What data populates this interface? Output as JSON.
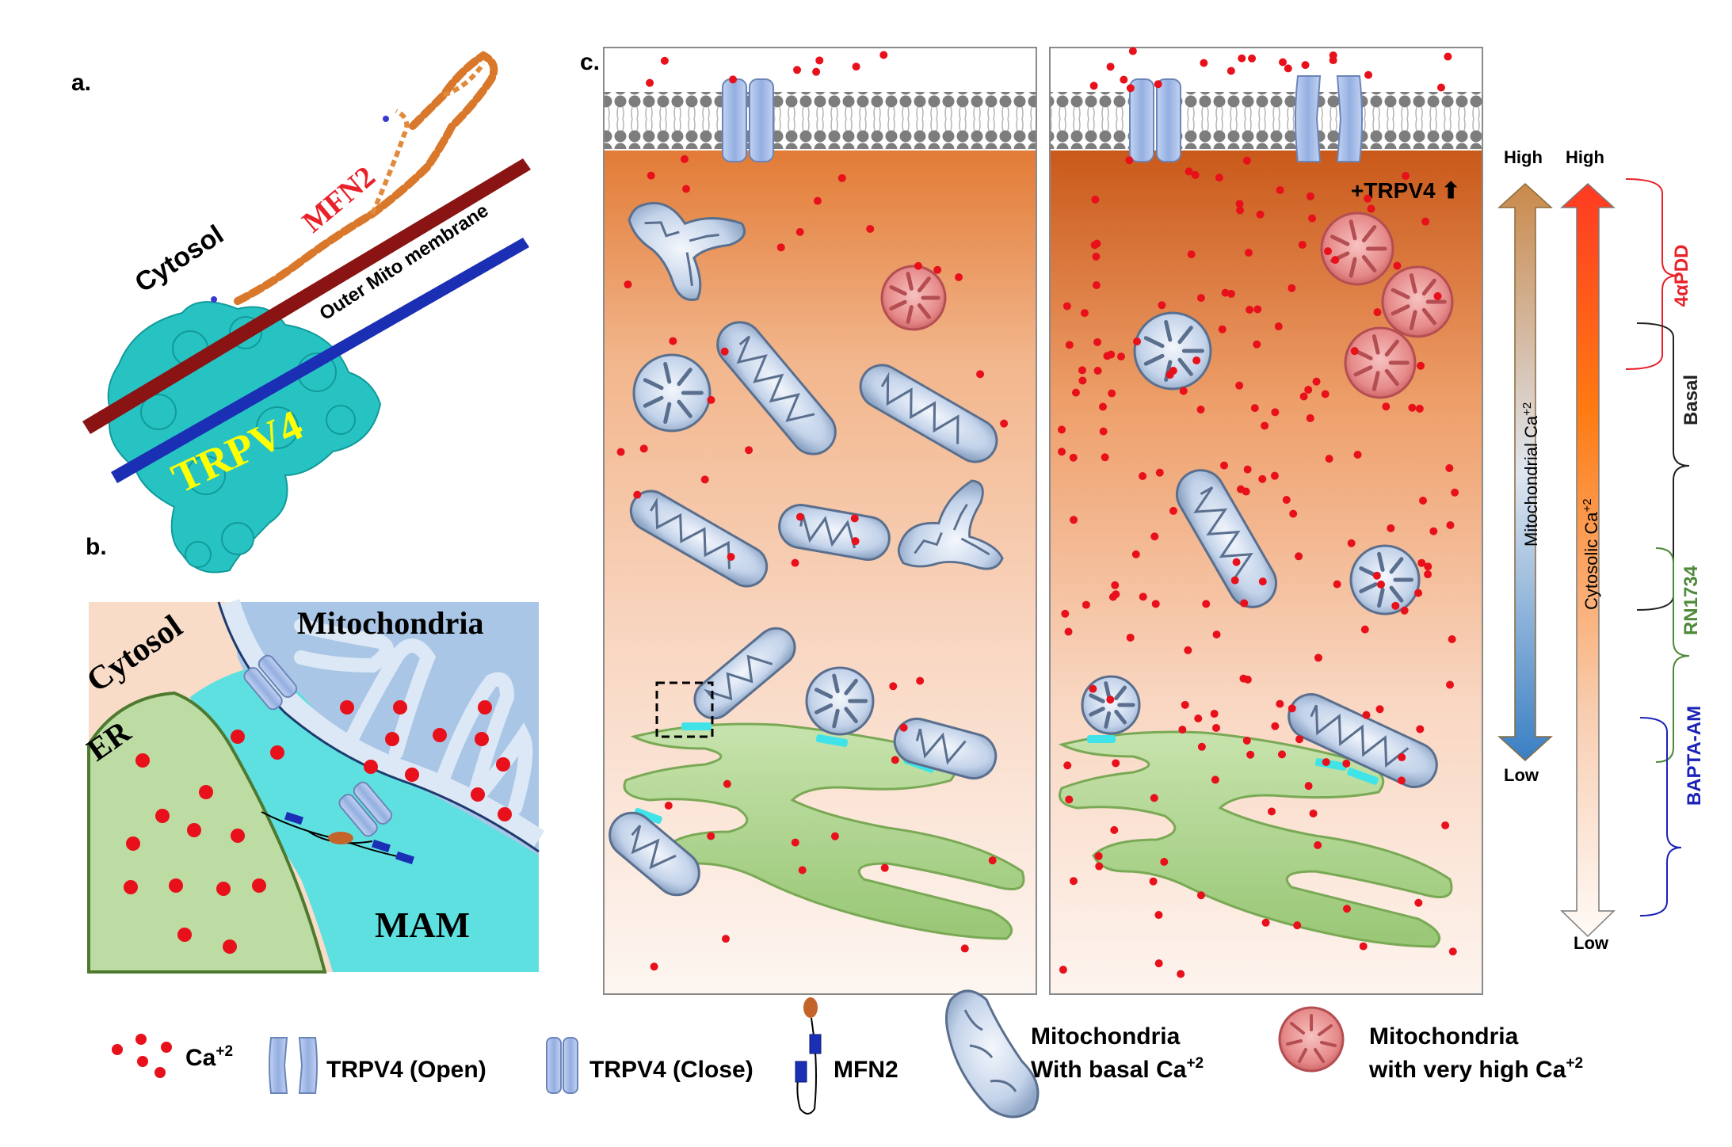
{
  "panel_labels": {
    "a": "a.",
    "b": "b.",
    "c": "c."
  },
  "panel_a": {
    "cytosol": "Cytosol",
    "mfn2": "MFN2",
    "outer_membrane": "Outer Mito membrane",
    "trpv4": "TRPV4"
  },
  "panel_b": {
    "cytosol": "Cytosol",
    "mitochondria": "Mitochondria",
    "er": "ER",
    "mam": "MAM"
  },
  "panel_c": {
    "trpv4_up": "+TRPV4 ⬆"
  },
  "scales": {
    "mito_high": "High",
    "mito_low": "Low",
    "mito_label": "Mitochondrial Ca",
    "mito_sup": "+2",
    "cyto_high": "High",
    "cyto_low": "Low",
    "cyto_label": "Cytosolic Ca",
    "cyto_sup": "+2"
  },
  "brackets": [
    {
      "label": "4αPDD",
      "color": "#e8212a"
    },
    {
      "label": "Basal",
      "color": "#222222"
    },
    {
      "label": "RN1734",
      "color": "#4e8a3a"
    },
    {
      "label": "BAPTA-AM",
      "color": "#1a22b8"
    }
  ],
  "legend": {
    "ca": "Ca",
    "ca_sup": "+2",
    "trpv4_open": "TRPV4 (Open)",
    "trpv4_close": "TRPV4 (Close)",
    "mfn2": "MFN2",
    "mito_basal_1": "Mitochondria",
    "mito_basal_2": "With basal Ca",
    "mito_basal_sup": "+2",
    "mito_high_1": "Mitochondria",
    "mito_high_2": "with very high Ca",
    "mito_high_sup": "+2"
  },
  "colors": {
    "calcium": "#e8101a",
    "trpv4_protein": "#27c3c3",
    "mfn2_protein": "#d9782a",
    "mfn2_label": "#e8212a",
    "membrane_blue": "#1b2fb5",
    "membrane_red": "#8a1414",
    "er_green": "#a9d28a",
    "mam_cyan": "#5fe0e0",
    "mito_blue": "#a9c6e6",
    "channel_blue": "#9db5e3",
    "cytosol_orange": "#d46a1e"
  }
}
